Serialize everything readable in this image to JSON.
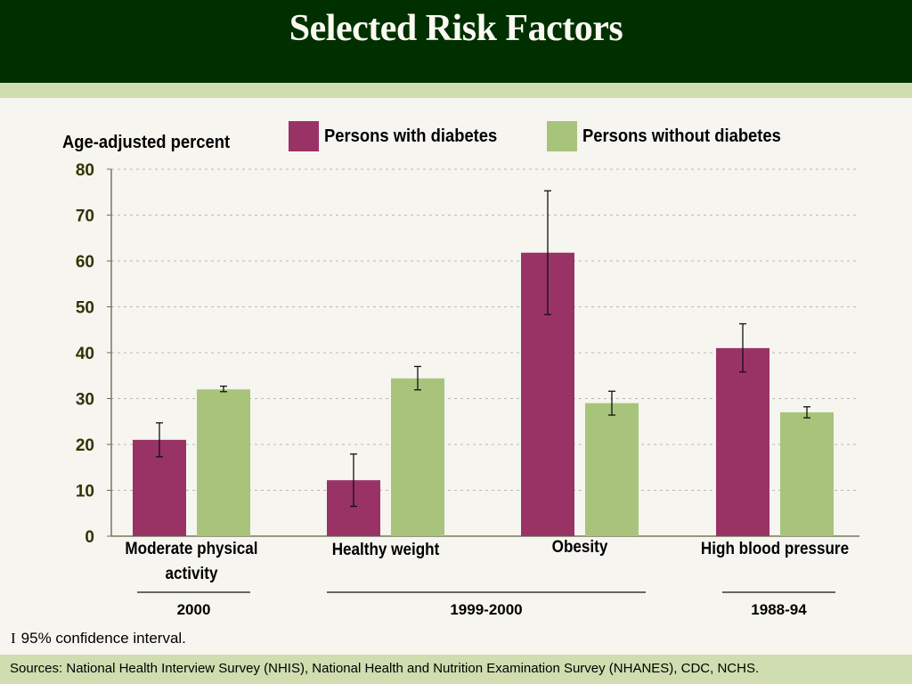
{
  "slide": {
    "title": "Selected Risk Factors",
    "ci_glyph": "I",
    "ci_note": "95% confidence interval.",
    "sources": "Sources: National Health Interview Survey (NHIS), National Health and Nutrition Examination Survey (NHANES), CDC, NCHS.",
    "colors": {
      "header_bg": "#003000",
      "band": "#d0ddb0",
      "background": "#f6f5f0",
      "with_diabetes": "#993366",
      "without_diabetes": "#a8c47a"
    }
  },
  "chart_data": {
    "type": "bar",
    "title": "Selected Risk Factors",
    "xlabel": "",
    "ylabel": "Age-adjusted percent",
    "ylim": [
      0,
      80
    ],
    "yticks": [
      0,
      10,
      20,
      30,
      40,
      50,
      60,
      70,
      80
    ],
    "grid": true,
    "legend_position": "top",
    "categories": [
      "Moderate physical activity",
      "Healthy weight",
      "Obesity",
      "High blood pressure"
    ],
    "category_labels": [
      [
        "Moderate physical",
        "activity"
      ],
      [
        "Healthy weight"
      ],
      [
        "Obesity"
      ],
      [
        "High blood pressure"
      ]
    ],
    "series": [
      {
        "name": "Persons with diabetes",
        "color": "#993366",
        "values": [
          21,
          12.2,
          61.8,
          41
        ],
        "ci_low": [
          17.3,
          6.5,
          48.3,
          35.8
        ],
        "ci_high": [
          24.7,
          17.9,
          75.3,
          46.3
        ]
      },
      {
        "name": "Persons without diabetes",
        "color": "#a8c47a",
        "values": [
          32,
          34.4,
          29,
          27
        ],
        "ci_low": [
          31.5,
          31.9,
          26.4,
          25.8
        ],
        "ci_high": [
          32.7,
          37.0,
          31.6,
          28.2
        ]
      }
    ],
    "period_groups": [
      {
        "label": "2000",
        "categories": [
          0
        ]
      },
      {
        "label": "1999-2000",
        "categories": [
          1,
          2
        ]
      },
      {
        "label": "1988-94",
        "categories": [
          3
        ]
      }
    ],
    "error_bar_meaning": "95% confidence interval"
  }
}
